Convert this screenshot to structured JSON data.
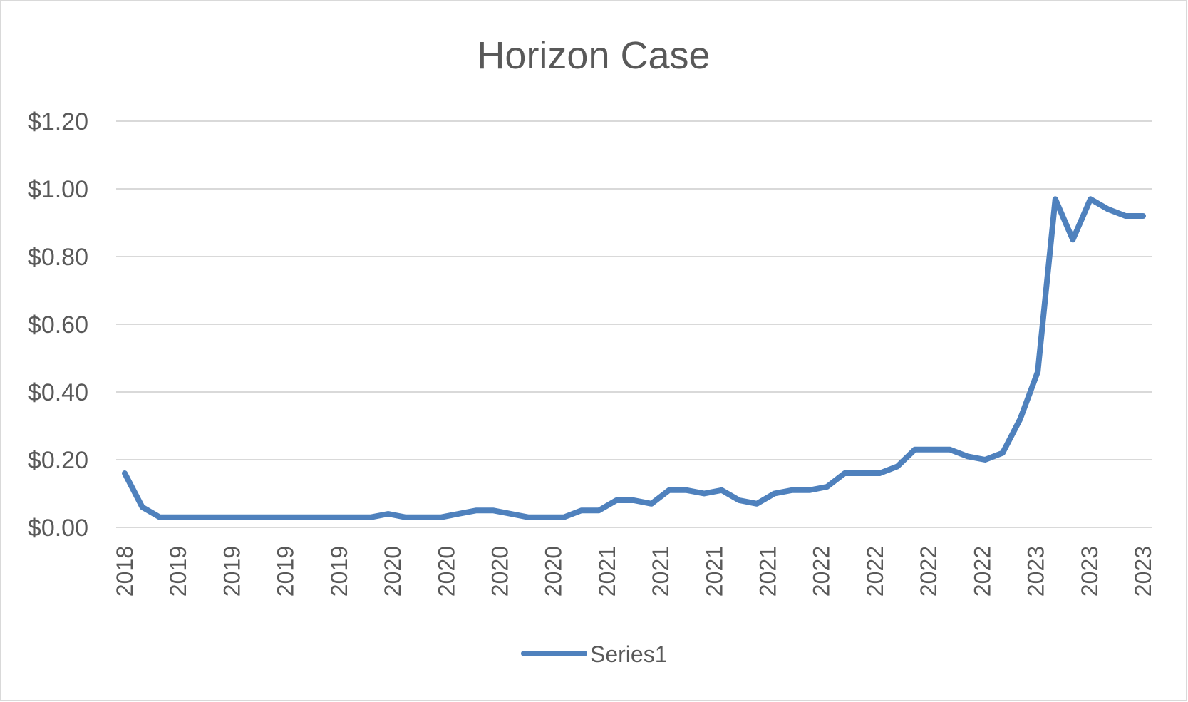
{
  "chart_data": {
    "type": "line",
    "title": "Horizon Case",
    "xlabel": "",
    "ylabel": "",
    "ylim": [
      0,
      1.2
    ],
    "yticks": [
      "$0.00",
      "$0.20",
      "$0.40",
      "$0.60",
      "$0.80",
      "$1.00",
      "$1.20"
    ],
    "ytick_values": [
      0,
      0.2,
      0.4,
      0.6,
      0.8,
      1.0,
      1.2
    ],
    "grid": true,
    "legend_position": "bottom",
    "x": [
      "2018",
      "2018",
      "2018",
      "2019",
      "2019",
      "2019",
      "2019",
      "2019",
      "2019",
      "2019",
      "2019",
      "2019",
      "2019",
      "2019",
      "2019",
      "2020",
      "2020",
      "2020",
      "2020",
      "2020",
      "2020",
      "2020",
      "2020",
      "2020",
      "2020",
      "2020",
      "2020",
      "2021",
      "2021",
      "2021",
      "2021",
      "2021",
      "2021",
      "2021",
      "2021",
      "2021",
      "2021",
      "2021",
      "2021",
      "2022",
      "2022",
      "2022",
      "2022",
      "2022",
      "2022",
      "2022",
      "2022",
      "2022",
      "2022",
      "2022",
      "2022",
      "2023",
      "2023",
      "2023",
      "2023",
      "2023",
      "2023",
      "2023",
      "2023"
    ],
    "x_tick_labels": [
      "2018",
      "2019",
      "2019",
      "2019",
      "2019",
      "2020",
      "2020",
      "2020",
      "2020",
      "2021",
      "2021",
      "2021",
      "2021",
      "2022",
      "2022",
      "2022",
      "2022",
      "2023",
      "2023",
      "2023"
    ],
    "series": [
      {
        "name": "Series1",
        "color": "#4f81bd",
        "values": [
          0.16,
          0.06,
          0.03,
          0.03,
          0.03,
          0.03,
          0.03,
          0.03,
          0.03,
          0.03,
          0.03,
          0.03,
          0.03,
          0.03,
          0.03,
          0.04,
          0.03,
          0.03,
          0.03,
          0.04,
          0.05,
          0.05,
          0.04,
          0.03,
          0.03,
          0.03,
          0.05,
          0.05,
          0.08,
          0.08,
          0.07,
          0.11,
          0.11,
          0.1,
          0.11,
          0.08,
          0.07,
          0.1,
          0.11,
          0.11,
          0.12,
          0.16,
          0.16,
          0.16,
          0.18,
          0.23,
          0.23,
          0.23,
          0.21,
          0.2,
          0.22,
          0.32,
          0.46,
          0.97,
          0.85,
          0.97,
          0.94,
          0.92,
          0.92
        ]
      }
    ]
  }
}
